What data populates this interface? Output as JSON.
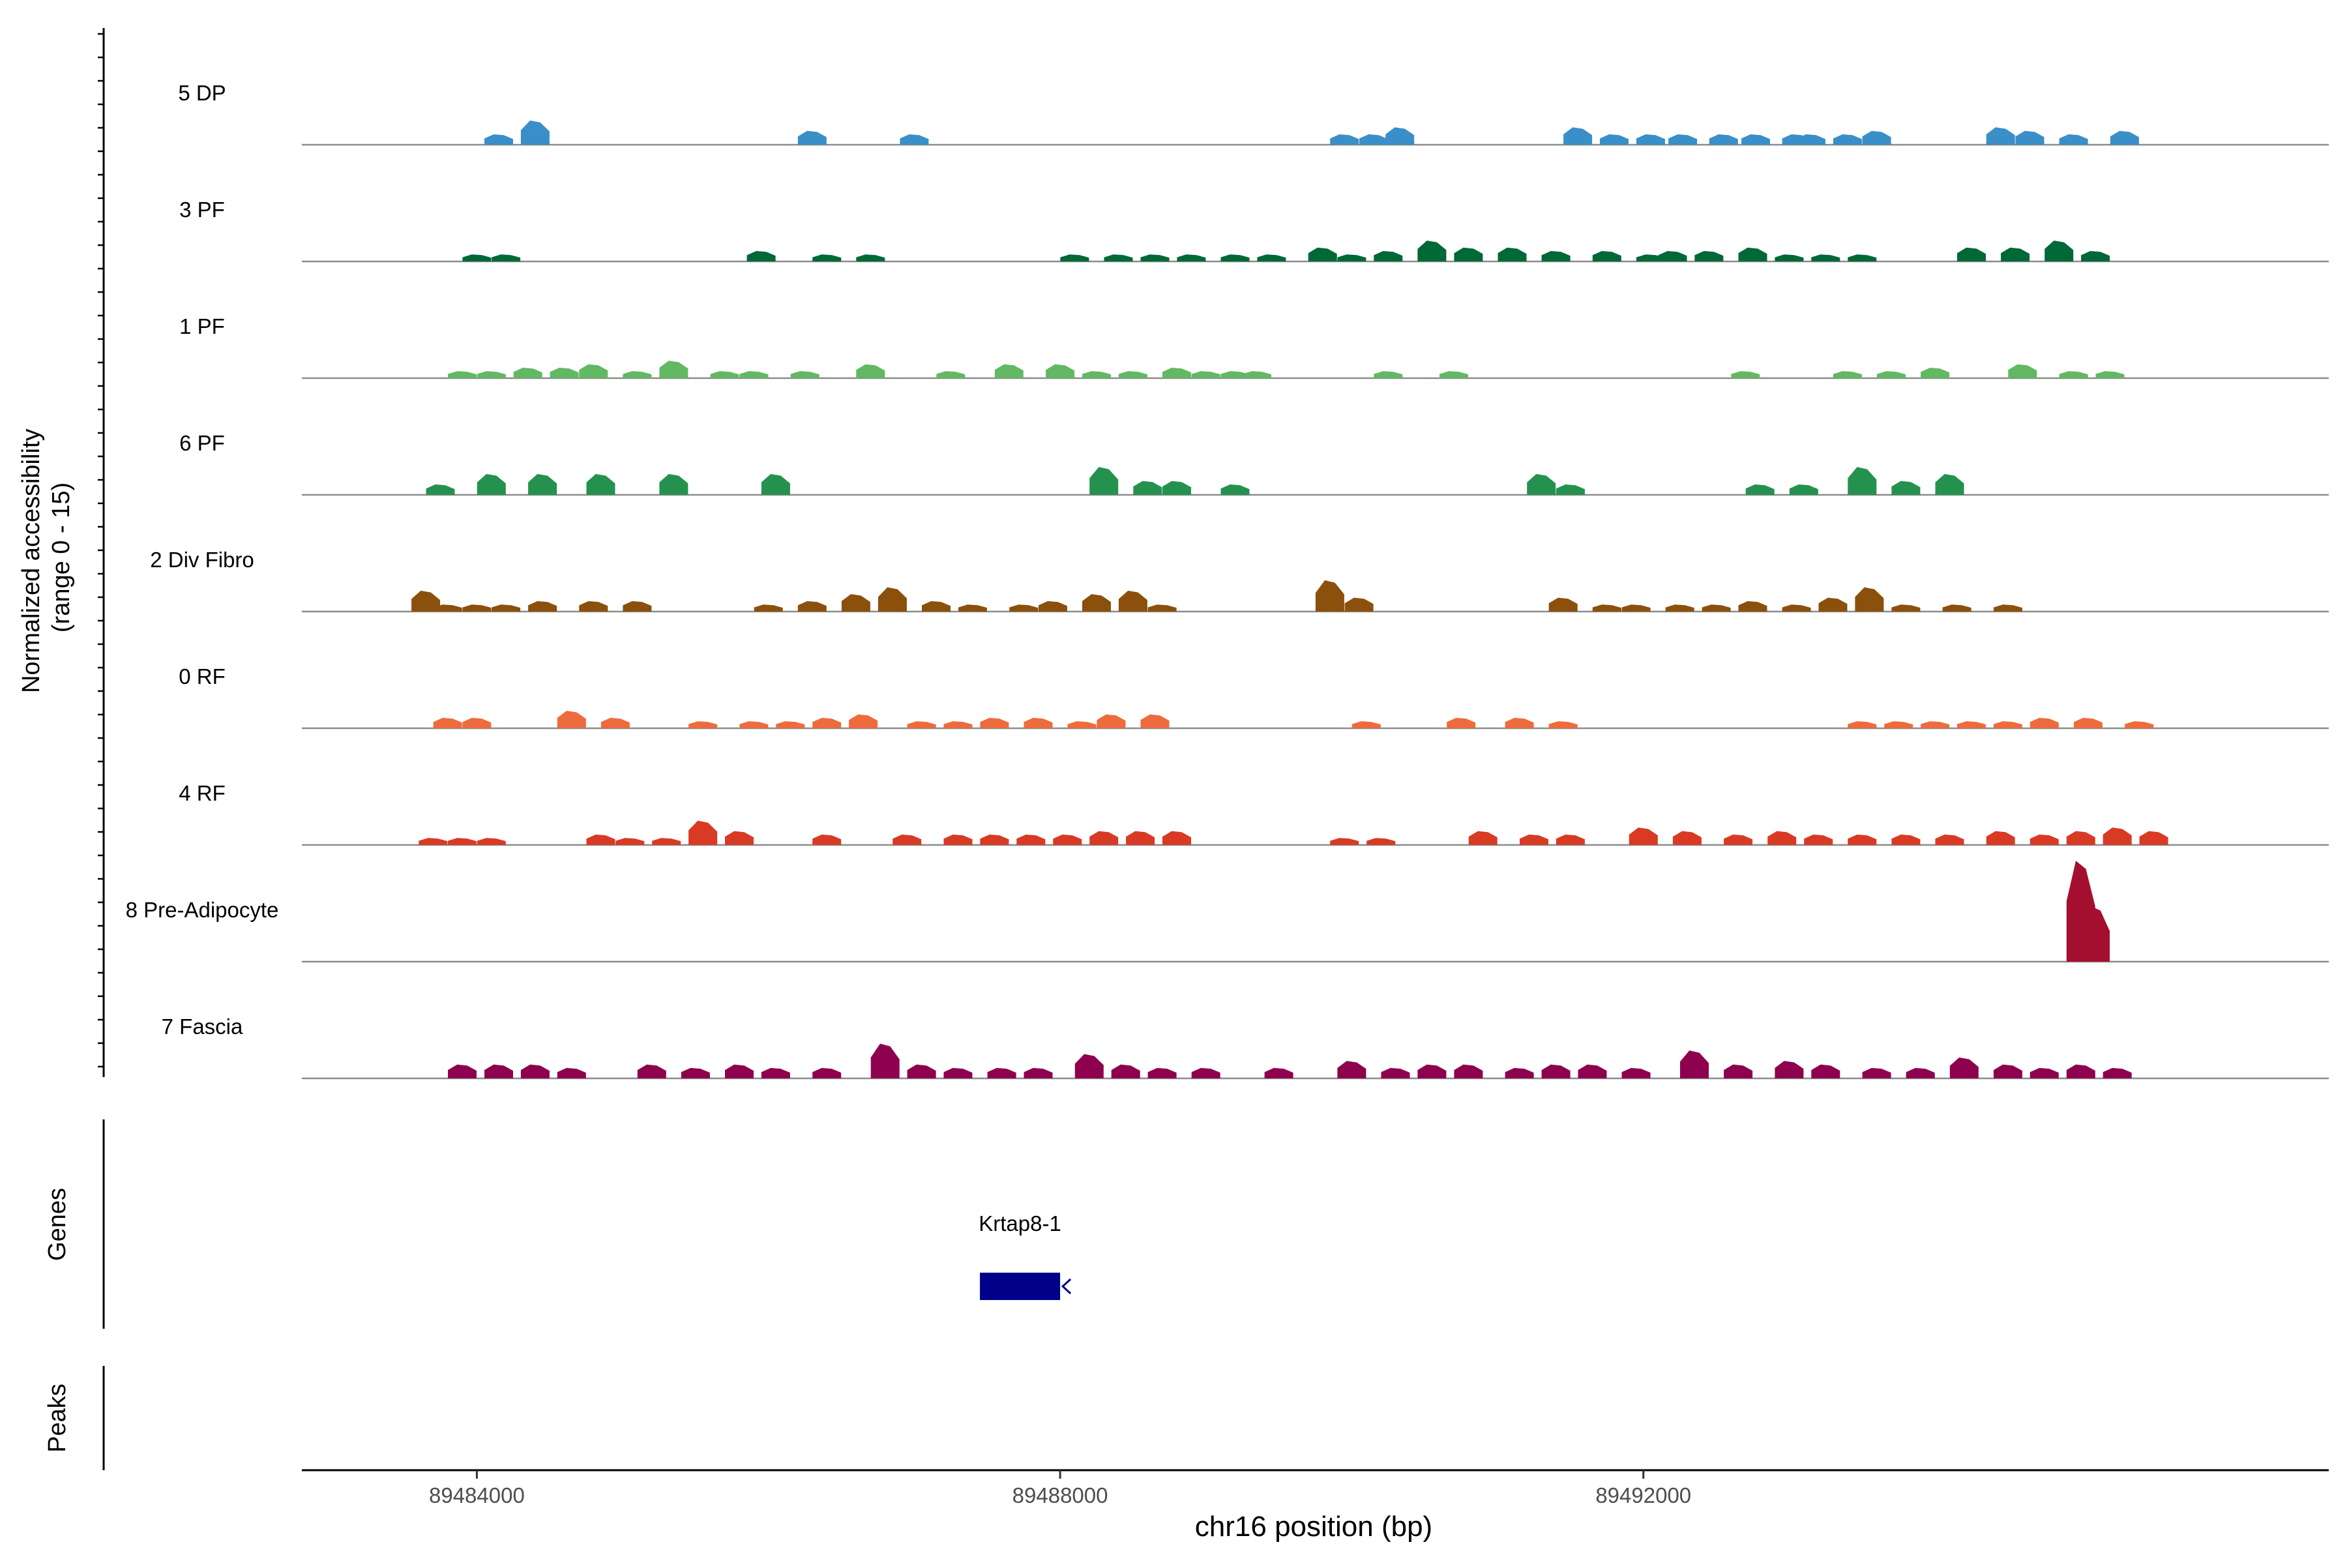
{
  "chart_data": {
    "type": "area",
    "title": "",
    "xlabel": "chr16 position (bp)",
    "ylabel": "Normalized accessibility\n(range 0 - 15)",
    "xlim": [
      89482800,
      89496700
    ],
    "ylim": [
      0,
      15
    ],
    "x_ticks": [
      {
        "value": 89484000,
        "label": "89484000"
      },
      {
        "value": 89488000,
        "label": "89488000"
      },
      {
        "value": 89492000,
        "label": "89492000"
      }
    ],
    "series": [
      {
        "name": "5 DP",
        "color": "#3a8fc8",
        "points": [
          [
            89484150,
            1.5
          ],
          [
            89484400,
            3.5
          ],
          [
            89486300,
            2
          ],
          [
            89487000,
            1.5
          ],
          [
            89489950,
            1.5
          ],
          [
            89490150,
            1.5
          ],
          [
            89490330,
            2.5
          ],
          [
            89491550,
            2.5
          ],
          [
            89491800,
            1.5
          ],
          [
            89492050,
            1.5
          ],
          [
            89492270,
            1.5
          ],
          [
            89492550,
            1.5
          ],
          [
            89492770,
            1.5
          ],
          [
            89493050,
            1.5
          ],
          [
            89493150,
            1.5
          ],
          [
            89493400,
            1.5
          ],
          [
            89493600,
            2
          ],
          [
            89494450,
            2.5
          ],
          [
            89494650,
            2
          ],
          [
            89494950,
            1.5
          ],
          [
            89495300,
            2
          ]
        ]
      },
      {
        "name": "3 PF",
        "color": "#016837",
        "points": [
          [
            89484000,
            1
          ],
          [
            89484200,
            1
          ],
          [
            89485950,
            1.5
          ],
          [
            89486400,
            1
          ],
          [
            89486700,
            1
          ],
          [
            89488100,
            1
          ],
          [
            89488400,
            1
          ],
          [
            89488650,
            1
          ],
          [
            89488900,
            1
          ],
          [
            89489200,
            1
          ],
          [
            89489450,
            1
          ],
          [
            89489800,
            2
          ],
          [
            89490000,
            1
          ],
          [
            89490250,
            1.5
          ],
          [
            89490550,
            3
          ],
          [
            89490800,
            2
          ],
          [
            89491100,
            2
          ],
          [
            89491400,
            1.5
          ],
          [
            89491750,
            1.5
          ],
          [
            89492050,
            1
          ],
          [
            89492200,
            1.5
          ],
          [
            89492450,
            1.5
          ],
          [
            89492750,
            2
          ],
          [
            89493000,
            1
          ],
          [
            89493250,
            1
          ],
          [
            89493500,
            1
          ],
          [
            89494250,
            2
          ],
          [
            89494550,
            2
          ],
          [
            89494850,
            3
          ],
          [
            89495100,
            1.5
          ]
        ]
      },
      {
        "name": "1 PF",
        "color": "#63b863",
        "points": [
          [
            89483900,
            1
          ],
          [
            89484100,
            1
          ],
          [
            89484350,
            1.5
          ],
          [
            89484600,
            1.5
          ],
          [
            89484800,
            2
          ],
          [
            89485100,
            1
          ],
          [
            89485350,
            2.5
          ],
          [
            89485700,
            1
          ],
          [
            89485900,
            1
          ],
          [
            89486250,
            1
          ],
          [
            89486700,
            2
          ],
          [
            89487250,
            1
          ],
          [
            89487650,
            2
          ],
          [
            89488000,
            2
          ],
          [
            89488250,
            1
          ],
          [
            89488500,
            1
          ],
          [
            89488800,
            1.5
          ],
          [
            89489000,
            1
          ],
          [
            89489200,
            1
          ],
          [
            89489350,
            1
          ],
          [
            89490250,
            1
          ],
          [
            89490700,
            1
          ],
          [
            89492700,
            1
          ],
          [
            89493400,
            1
          ],
          [
            89493700,
            1
          ],
          [
            89494000,
            1.5
          ],
          [
            89494600,
            2
          ],
          [
            89494950,
            1
          ],
          [
            89495200,
            1
          ]
        ]
      },
      {
        "name": "6 PF",
        "color": "#24924e",
        "points": [
          [
            89483750,
            1.5
          ],
          [
            89484100,
            3
          ],
          [
            89484450,
            3
          ],
          [
            89484850,
            3
          ],
          [
            89485350,
            3
          ],
          [
            89486050,
            3
          ],
          [
            89488300,
            4
          ],
          [
            89488600,
            2
          ],
          [
            89488800,
            2
          ],
          [
            89489200,
            1.5
          ],
          [
            89491300,
            3
          ],
          [
            89491500,
            1.5
          ],
          [
            89492800,
            1.5
          ],
          [
            89493100,
            1.5
          ],
          [
            89493500,
            4
          ],
          [
            89493800,
            2
          ],
          [
            89494100,
            3
          ]
        ]
      },
      {
        "name": "2 Div Fibro",
        "color": "#8b500c",
        "points": [
          [
            89483650,
            3
          ],
          [
            89483800,
            1
          ],
          [
            89484000,
            1
          ],
          [
            89484200,
            1
          ],
          [
            89484450,
            1.5
          ],
          [
            89484800,
            1.5
          ],
          [
            89485100,
            1.5
          ],
          [
            89486000,
            1
          ],
          [
            89486300,
            1.5
          ],
          [
            89486600,
            2.5
          ],
          [
            89486850,
            3.5
          ],
          [
            89487150,
            1.5
          ],
          [
            89487400,
            1
          ],
          [
            89487750,
            1
          ],
          [
            89487950,
            1.5
          ],
          [
            89488250,
            2.5
          ],
          [
            89488500,
            3
          ],
          [
            89488700,
            1
          ],
          [
            89489850,
            4.5
          ],
          [
            89490050,
            2
          ],
          [
            89491450,
            2
          ],
          [
            89491750,
            1
          ],
          [
            89491950,
            1
          ],
          [
            89492250,
            1
          ],
          [
            89492500,
            1
          ],
          [
            89492750,
            1.5
          ],
          [
            89493050,
            1
          ],
          [
            89493300,
            2
          ],
          [
            89493550,
            3.5
          ],
          [
            89493800,
            1
          ],
          [
            89494150,
            1
          ],
          [
            89494500,
            1
          ]
        ]
      },
      {
        "name": "0 RF",
        "color": "#ee6b3d",
        "points": [
          [
            89483800,
            1.5
          ],
          [
            89484000,
            1.5
          ],
          [
            89484650,
            2.5
          ],
          [
            89484950,
            1.5
          ],
          [
            89485550,
            1
          ],
          [
            89485900,
            1
          ],
          [
            89486150,
            1
          ],
          [
            89486400,
            1.5
          ],
          [
            89486650,
            2
          ],
          [
            89487050,
            1
          ],
          [
            89487300,
            1
          ],
          [
            89487550,
            1.5
          ],
          [
            89487850,
            1.5
          ],
          [
            89488150,
            1
          ],
          [
            89488350,
            2
          ],
          [
            89488650,
            2
          ],
          [
            89490100,
            1
          ],
          [
            89490750,
            1.5
          ],
          [
            89491150,
            1.5
          ],
          [
            89491450,
            1
          ],
          [
            89493500,
            1
          ],
          [
            89493750,
            1
          ],
          [
            89494000,
            1
          ],
          [
            89494250,
            1
          ],
          [
            89494500,
            1
          ],
          [
            89494750,
            1.5
          ],
          [
            89495050,
            1.5
          ],
          [
            89495400,
            1
          ]
        ]
      },
      {
        "name": "4 RF",
        "color": "#d93a24",
        "points": [
          [
            89483700,
            1
          ],
          [
            89483900,
            1
          ],
          [
            89484100,
            1
          ],
          [
            89484850,
            1.5
          ],
          [
            89485050,
            1
          ],
          [
            89485300,
            1
          ],
          [
            89485550,
            3.5
          ],
          [
            89485800,
            2
          ],
          [
            89486400,
            1.5
          ],
          [
            89486950,
            1.5
          ],
          [
            89487300,
            1.5
          ],
          [
            89487550,
            1.5
          ],
          [
            89487800,
            1.5
          ],
          [
            89488050,
            1.5
          ],
          [
            89488300,
            2
          ],
          [
            89488550,
            2
          ],
          [
            89488800,
            2
          ],
          [
            89489950,
            1
          ],
          [
            89490200,
            1
          ],
          [
            89490900,
            2
          ],
          [
            89491250,
            1.5
          ],
          [
            89491500,
            1.5
          ],
          [
            89492000,
            2.5
          ],
          [
            89492300,
            2
          ],
          [
            89492650,
            1.5
          ],
          [
            89492950,
            2
          ],
          [
            89493200,
            1.5
          ],
          [
            89493500,
            1.5
          ],
          [
            89493800,
            1.5
          ],
          [
            89494100,
            1.5
          ],
          [
            89494450,
            2
          ],
          [
            89494750,
            1.5
          ],
          [
            89495000,
            2
          ],
          [
            89495250,
            2.5
          ],
          [
            89495500,
            2
          ]
        ]
      },
      {
        "name": "8 Pre-Adipocyte",
        "color": "#a50f2f",
        "points": [
          [
            89495000,
            14.5
          ],
          [
            89495100,
            8
          ]
        ]
      },
      {
        "name": "7 Fascia",
        "color": "#8d014e",
        "points": [
          [
            89483900,
            2
          ],
          [
            89484150,
            2
          ],
          [
            89484400,
            2
          ],
          [
            89484650,
            1.5
          ],
          [
            89485200,
            2
          ],
          [
            89485500,
            1.5
          ],
          [
            89485800,
            2
          ],
          [
            89486050,
            1.5
          ],
          [
            89486400,
            1.5
          ],
          [
            89486800,
            5
          ],
          [
            89487050,
            2
          ],
          [
            89487300,
            1.5
          ],
          [
            89487600,
            1.5
          ],
          [
            89487850,
            1.5
          ],
          [
            89488200,
            3.5
          ],
          [
            89488450,
            2
          ],
          [
            89488700,
            1.5
          ],
          [
            89489000,
            1.5
          ],
          [
            89489500,
            1.5
          ],
          [
            89490000,
            2.5
          ],
          [
            89490300,
            1.5
          ],
          [
            89490550,
            2
          ],
          [
            89490800,
            2
          ],
          [
            89491150,
            1.5
          ],
          [
            89491400,
            2
          ],
          [
            89491650,
            2
          ],
          [
            89491950,
            1.5
          ],
          [
            89492350,
            4
          ],
          [
            89492650,
            2
          ],
          [
            89493000,
            2.5
          ],
          [
            89493250,
            2
          ],
          [
            89493600,
            1.5
          ],
          [
            89493900,
            1.5
          ],
          [
            89494200,
            3
          ],
          [
            89494500,
            2
          ],
          [
            89494750,
            1.5
          ],
          [
            89495000,
            2
          ],
          [
            89495250,
            1.5
          ]
        ]
      }
    ],
    "genes": [
      {
        "name": "Krtap8-1",
        "start": 89487450,
        "end": 89488000,
        "strand": "-",
        "color": "#00008b"
      }
    ],
    "panel_labels": {
      "genes": "Genes",
      "peaks": "Peaks"
    }
  }
}
